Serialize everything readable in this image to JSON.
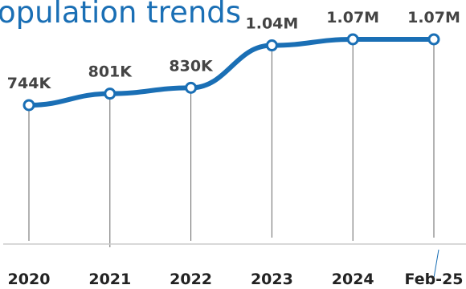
{
  "chart_data": {
    "type": "line",
    "title": "opulation trends",
    "categories": [
      "2020",
      "2021",
      "2022",
      "2023",
      "2024",
      "Feb-25"
    ],
    "values": [
      744000,
      801000,
      830000,
      1040000,
      1070000,
      1070000
    ],
    "data_labels": [
      "744K",
      "801K",
      "830K",
      "1.04M",
      "1.07M",
      "1.07M"
    ],
    "xlabel": "",
    "ylabel": "",
    "grid": false,
    "legend": "none",
    "colors": {
      "line": "#1a6fb5",
      "marker_fill": "#ffffff",
      "droplines": "#666666",
      "baseline": "#cccccc",
      "title": "#1a6fb5"
    }
  }
}
